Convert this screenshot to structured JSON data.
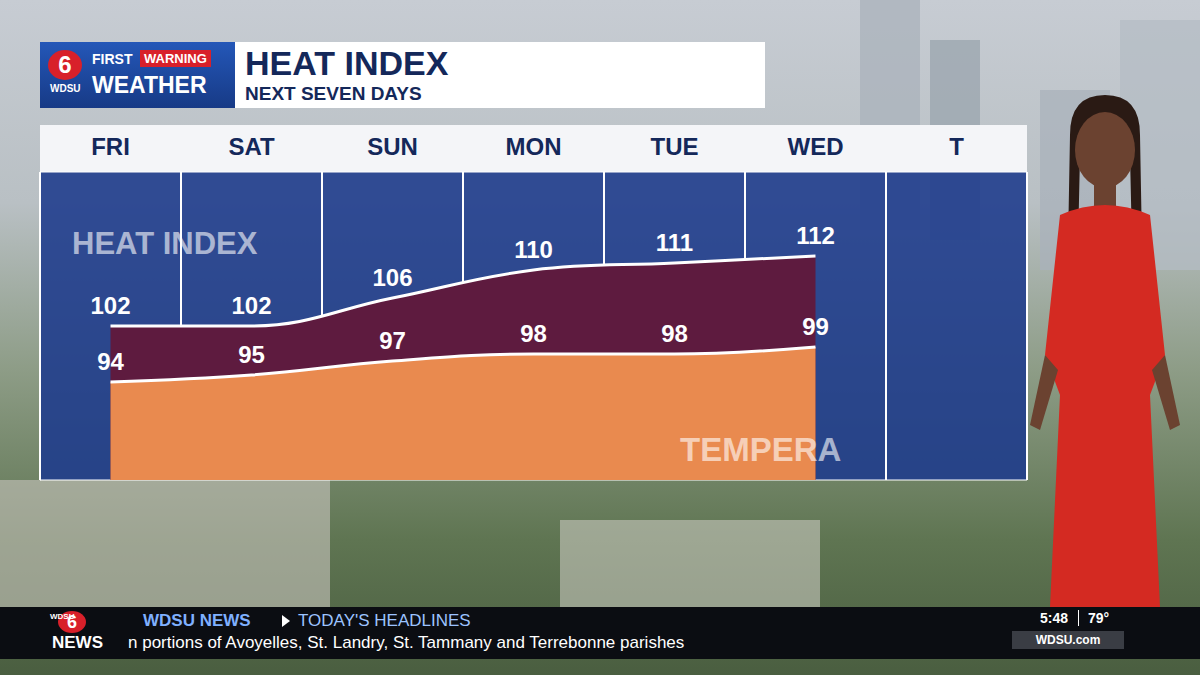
{
  "header": {
    "logo": {
      "number": "6",
      "station": "WDSU"
    },
    "brand": {
      "first": "FIRST",
      "warning": "WARNING",
      "weather": "WEATHER"
    },
    "title": "HEAT INDEX",
    "subtitle": "NEXT SEVEN DAYS"
  },
  "chart_data": {
    "type": "line",
    "categories": [
      "FRI",
      "SAT",
      "SUN",
      "MON",
      "TUE",
      "WED",
      "T"
    ],
    "series": [
      {
        "name": "HEAT INDEX",
        "color": "#5e1b3f",
        "values": [
          102,
          102,
          106,
          110,
          111,
          112,
          null
        ]
      },
      {
        "name": "TEMPERA",
        "color": "#e98a4f",
        "values": [
          94,
          95,
          97,
          98,
          98,
          99,
          null
        ]
      }
    ],
    "ylim": [
      80,
      124
    ],
    "tick_labels": "x",
    "data_labels": true,
    "grid": true
  },
  "ticker": {
    "logo": {
      "number": "6",
      "station": "WDSU",
      "label": "NEWS"
    },
    "program": "WDSU NEWS",
    "section": "TODAY'S HEADLINES",
    "headline": "n portions of Avoyelles, St. Landry, St. Tammany and Terrebonne parishes",
    "time": "5:48",
    "temperature": "79°",
    "website": "WDSU.com"
  }
}
